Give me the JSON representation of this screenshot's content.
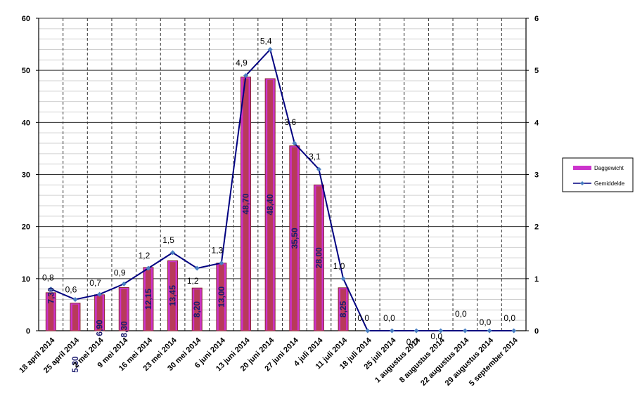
{
  "chart_data": {
    "type": "bar",
    "categories": [
      "18 april 2014",
      "25 april 2014",
      "2 mei 2014",
      "9 mei 2014",
      "16 mei 2014",
      "23 mei 2014",
      "30 mei 2014",
      "6 juni 2014",
      "13 juni 2014",
      "20 juni 2014",
      "27 juni 2014",
      "4 juli 2014",
      "11 juli 2014",
      "18 juli 2014",
      "25 juli 2014",
      "1 augustus 2014",
      "8 augustus 2014",
      "22 augustus 2014",
      "29 augustus 2014",
      "5 september 2014"
    ],
    "series": [
      {
        "name": "Daggewicht",
        "type": "bar",
        "axis": "left",
        "color": "#cc33cc",
        "values": [
          7.3,
          5.3,
          6.9,
          8.3,
          12.15,
          13.45,
          8.2,
          13.0,
          48.7,
          48.4,
          35.5,
          28.0,
          8.25,
          null,
          null,
          null,
          null,
          null,
          null,
          null
        ],
        "labels": [
          "7,30",
          "5,30",
          "6,90",
          "8,30",
          "12,15",
          "13,45",
          "8,20",
          "13,00",
          "48,70",
          "48,40",
          "35,50",
          "28,00",
          "8,25",
          "",
          "",
          "",
          "",
          "",
          "",
          ""
        ]
      },
      {
        "name": "Gemiddelde",
        "type": "line",
        "axis": "right",
        "color": "#000080",
        "values": [
          0.8,
          0.6,
          0.7,
          0.9,
          1.2,
          1.5,
          1.2,
          1.3,
          4.9,
          5.4,
          3.6,
          3.1,
          1.0,
          0.0,
          0.0,
          0.0,
          0.0,
          0.0,
          0.0,
          0.0
        ],
        "labels": [
          "0,8",
          "0,6",
          "0,7",
          "0,9",
          "1,2",
          "1,5",
          "1,2",
          "1,3",
          "4,9",
          "5,4",
          "3,6",
          "3,1",
          "1,0",
          "0,0",
          "0,0",
          "0,0",
          "0,0",
          "0,0",
          "0,0",
          "0,0"
        ]
      }
    ],
    "ylim": [
      0,
      60
    ],
    "yticks": [
      "0",
      "10",
      "20",
      "30",
      "40",
      "50",
      "60"
    ],
    "y2lim": [
      0,
      6
    ],
    "y2ticks": [
      "0",
      "1",
      "2",
      "3",
      "4",
      "5",
      "6"
    ],
    "grid": true,
    "legend_position": "right"
  }
}
